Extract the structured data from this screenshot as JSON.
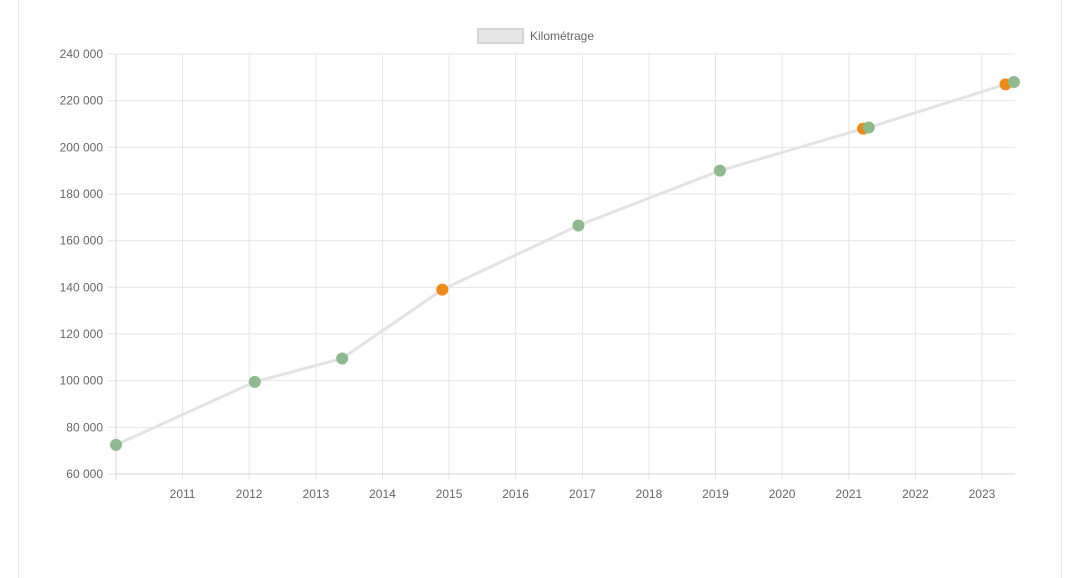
{
  "chart_data": {
    "type": "line",
    "legend": {
      "label": "Kilométrage",
      "position": "top-center",
      "swatch_fill": "#e6e6e6",
      "swatch_stroke": "#d4d4d4"
    },
    "x_axis": {
      "type": "time",
      "min": "2010-01-01",
      "max": "2023-07-01",
      "ticks": [
        "2011",
        "2012",
        "2013",
        "2014",
        "2015",
        "2016",
        "2017",
        "2018",
        "2019",
        "2020",
        "2021",
        "2022",
        "2023"
      ]
    },
    "y_axis": {
      "min": 60000,
      "max": 240000,
      "step": 20000,
      "ticks": [
        "60 000",
        "80 000",
        "100 000",
        "120 000",
        "140 000",
        "160 000",
        "180 000",
        "200 000",
        "220 000",
        "240 000"
      ]
    },
    "grid": true,
    "colors": {
      "line": "#e3e3e3",
      "grid": "#e6e6e6",
      "axis": "#d6d6d6",
      "point_green": "#8fb98f",
      "point_orange": "#ef8a17"
    },
    "series": [
      {
        "name": "Kilométrage",
        "points": [
          {
            "x": "2010-01-01",
            "y": 72500,
            "color": "green"
          },
          {
            "x": "2012-02-01",
            "y": 99500,
            "color": "green"
          },
          {
            "x": "2013-05-25",
            "y": 109500,
            "color": "green"
          },
          {
            "x": "2014-11-25",
            "y": 139000,
            "color": "orange"
          },
          {
            "x": "2016-12-10",
            "y": 166500,
            "color": "green"
          },
          {
            "x": "2019-01-25",
            "y": 190000,
            "color": "green"
          },
          {
            "x": "2021-03-20",
            "y": 208000,
            "color": "orange"
          },
          {
            "x": "2021-04-20",
            "y": 208500,
            "color": "green"
          },
          {
            "x": "2023-05-10",
            "y": 227000,
            "color": "orange"
          },
          {
            "x": "2023-06-25",
            "y": 228000,
            "color": "green"
          }
        ]
      }
    ]
  }
}
